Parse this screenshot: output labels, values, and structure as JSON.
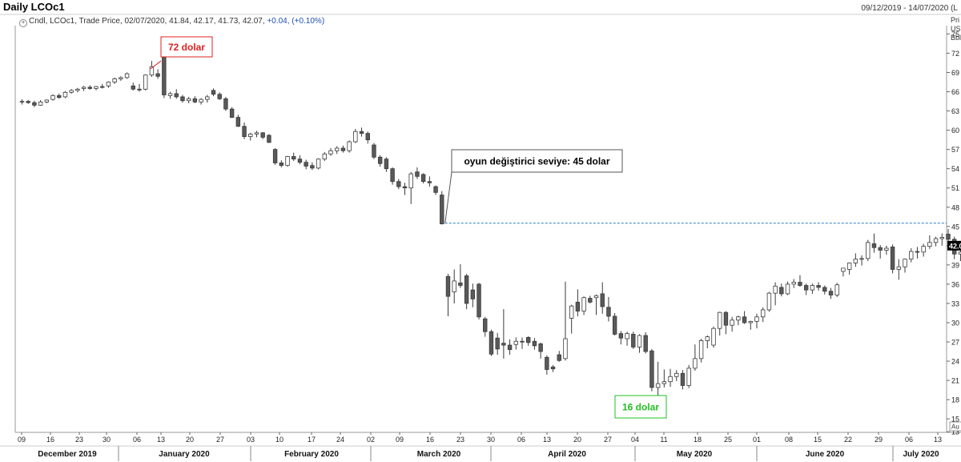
{
  "header": {
    "title": "Daily LCOc1",
    "date_range": "09/12/2019 - 14/07/2020 (L",
    "legend_series": "Cndl, LCOc1, Trade Price, 02/07/2020, 41.84, 42.17, 41.73, 42.07,",
    "legend_change": "+0.04, (+0.10%)",
    "axis_header": [
      "Pri",
      "USI",
      "Bbl"
    ]
  },
  "colors": {
    "down_candle": "#595959",
    "up_candle": "#ffffff",
    "dashed_line": "#2a78c8",
    "callout_red": "#e02020",
    "callout_green": "#22c022"
  },
  "chart_data": {
    "type": "candlestick",
    "ylim": [
      12.5,
      77
    ],
    "y_ticks": [
      75,
      72,
      69,
      66,
      63,
      60,
      57,
      54,
      51,
      48,
      45,
      42,
      39,
      36,
      33,
      30,
      27,
      24,
      21,
      18,
      15,
      13
    ],
    "y_tick_labels": [
      "75",
      "72",
      "69",
      "66",
      "63",
      "60",
      "57",
      "54",
      "51",
      "48",
      "45",
      "42.0",
      "39",
      "36",
      "33",
      "30",
      "27",
      "24",
      "21",
      "18",
      "15",
      "13"
    ],
    "last_price_label": "42.0",
    "axis_bottom_label": "Au",
    "x_day_ticks": [
      "09",
      "16",
      "23",
      "30",
      "06",
      "13",
      "20",
      "27",
      "03",
      "10",
      "17",
      "24",
      "02",
      "09",
      "16",
      "23",
      "30",
      "06",
      "13",
      "20",
      "27",
      "04",
      "11",
      "18",
      "25",
      "01",
      "08",
      "15",
      "22",
      "29",
      "06",
      "13"
    ],
    "x_month_labels": [
      "December 2019",
      "January 2020",
      "February 2020",
      "March 2020",
      "April 2020",
      "May 2020",
      "June 2020",
      "July 2020"
    ],
    "reference_line": {
      "value": 45.5,
      "style": "dashed"
    },
    "annotations": [
      {
        "text": "72 dolar",
        "color": "red",
        "target_candle": 22
      },
      {
        "text": "oyun değiştirici seviye: 45 dolar",
        "color": "black",
        "target_candle": 68
      },
      {
        "text": "16 dolar",
        "color": "green",
        "target_candle": 103
      }
    ],
    "candles": [
      [
        64.4,
        64.8,
        64.0,
        64.5
      ],
      [
        64.5,
        64.7,
        64.1,
        64.3
      ],
      [
        64.3,
        64.6,
        63.6,
        63.9
      ],
      [
        63.9,
        64.7,
        63.8,
        64.4
      ],
      [
        64.4,
        64.8,
        64.2,
        64.7
      ],
      [
        64.8,
        65.6,
        64.6,
        65.4
      ],
      [
        65.4,
        65.7,
        64.9,
        65.1
      ],
      [
        65.2,
        66.1,
        65.0,
        65.9
      ],
      [
        65.9,
        66.4,
        65.7,
        66.2
      ],
      [
        66.2,
        66.6,
        65.9,
        66.4
      ],
      [
        66.5,
        66.9,
        66.1,
        66.7
      ],
      [
        66.7,
        67.0,
        66.3,
        66.5
      ],
      [
        66.5,
        66.9,
        66.2,
        66.8
      ],
      [
        66.8,
        67.2,
        66.5,
        66.7
      ],
      [
        66.9,
        67.6,
        66.6,
        67.5
      ],
      [
        67.5,
        68.2,
        67.2,
        68.0
      ],
      [
        68.0,
        68.4,
        67.7,
        68.2
      ],
      [
        68.2,
        69.0,
        68.0,
        68.8
      ],
      [
        66.9,
        67.4,
        66.2,
        66.4
      ],
      [
        66.4,
        67.2,
        66.0,
        66.3
      ],
      [
        66.4,
        68.7,
        66.2,
        68.6
      ],
      [
        68.6,
        70.8,
        68.3,
        69.9
      ],
      [
        68.8,
        69.5,
        68.0,
        68.4
      ],
      [
        71.8,
        72.2,
        65.0,
        65.5
      ],
      [
        65.4,
        66.0,
        64.9,
        65.7
      ],
      [
        65.7,
        66.4,
        64.9,
        65.2
      ],
      [
        65.2,
        65.5,
        64.3,
        64.6
      ],
      [
        64.6,
        65.2,
        64.2,
        64.9
      ],
      [
        64.9,
        65.3,
        64.2,
        64.4
      ],
      [
        64.4,
        65.0,
        64.0,
        64.8
      ],
      [
        64.8,
        65.5,
        64.3,
        65.2
      ],
      [
        66.2,
        66.5,
        65.3,
        65.6
      ],
      [
        65.6,
        65.9,
        64.7,
        64.9
      ],
      [
        64.9,
        65.2,
        63.0,
        63.3
      ],
      [
        63.3,
        63.6,
        61.9,
        62.0
      ],
      [
        62.0,
        62.4,
        60.5,
        60.6
      ],
      [
        60.6,
        61.2,
        58.6,
        59.0
      ],
      [
        59.0,
        59.6,
        58.4,
        59.4
      ],
      [
        59.4,
        59.9,
        58.9,
        59.6
      ],
      [
        59.6,
        59.7,
        58.6,
        58.9
      ],
      [
        59.2,
        59.4,
        58.0,
        58.1
      ],
      [
        57.0,
        57.2,
        54.6,
        54.9
      ],
      [
        54.9,
        55.3,
        54.2,
        54.5
      ],
      [
        54.5,
        56.0,
        54.3,
        55.9
      ],
      [
        55.9,
        56.5,
        55.2,
        55.5
      ],
      [
        55.5,
        56.1,
        54.7,
        55.0
      ],
      [
        55.0,
        55.4,
        53.9,
        54.4
      ],
      [
        54.5,
        55.0,
        53.8,
        54.1
      ],
      [
        54.1,
        55.6,
        53.9,
        55.5
      ],
      [
        55.5,
        56.6,
        55.2,
        56.3
      ],
      [
        56.3,
        57.2,
        56.0,
        56.8
      ],
      [
        56.8,
        57.5,
        56.3,
        57.2
      ],
      [
        57.2,
        57.6,
        56.5,
        56.8
      ],
      [
        56.8,
        58.4,
        56.5,
        58.2
      ],
      [
        58.2,
        60.2,
        58.0,
        59.8
      ],
      [
        59.8,
        60.4,
        59.0,
        59.5
      ],
      [
        59.5,
        59.8,
        57.9,
        58.5
      ],
      [
        57.7,
        58.0,
        55.5,
        55.8
      ],
      [
        55.8,
        56.1,
        54.3,
        54.8
      ],
      [
        55.5,
        55.8,
        53.5,
        54.0
      ],
      [
        54.0,
        54.2,
        51.5,
        52.0
      ],
      [
        52.0,
        52.4,
        50.8,
        51.2
      ],
      [
        51.2,
        51.8,
        49.9,
        51.0
      ],
      [
        51.0,
        53.5,
        48.5,
        53.2
      ],
      [
        53.5,
        54.2,
        52.4,
        52.8
      ],
      [
        53.1,
        53.3,
        51.7,
        52.0
      ],
      [
        52.0,
        52.8,
        51.2,
        51.8
      ],
      [
        51.2,
        51.4,
        49.9,
        50.3
      ],
      [
        49.9,
        50.5,
        45.3,
        45.4
      ],
      [
        37.2,
        37.6,
        31.0,
        34.1
      ],
      [
        34.8,
        38.3,
        33.0,
        36.5
      ],
      [
        36.2,
        39.1,
        35.4,
        35.8
      ],
      [
        37.3,
        37.6,
        32.1,
        33.0
      ],
      [
        35.1,
        36.1,
        32.4,
        33.7
      ],
      [
        36.0,
        36.2,
        30.5,
        30.9
      ],
      [
        30.6,
        30.9,
        27.8,
        28.6
      ],
      [
        28.6,
        28.9,
        24.8,
        25.1
      ],
      [
        27.6,
        28.4,
        25.0,
        25.9
      ],
      [
        26.8,
        32.1,
        24.4,
        26.5
      ],
      [
        26.5,
        27.4,
        25.0,
        25.8
      ],
      [
        26.6,
        27.7,
        25.8,
        27.1
      ],
      [
        27.1,
        27.7,
        25.9,
        27.0
      ],
      [
        27.7,
        27.9,
        26.4,
        26.9
      ],
      [
        27.1,
        27.6,
        25.8,
        26.4
      ],
      [
        26.7,
        26.9,
        24.4,
        25.5
      ],
      [
        24.6,
        24.9,
        21.9,
        22.7
      ],
      [
        23.1,
        23.4,
        22.3,
        22.8
      ],
      [
        25.0,
        25.6,
        23.9,
        24.1
      ],
      [
        24.4,
        36.4,
        24.1,
        27.5
      ],
      [
        30.7,
        32.8,
        28.3,
        32.6
      ],
      [
        33.2,
        35.2,
        31.0,
        31.8
      ],
      [
        31.8,
        34.1,
        31.2,
        33.9
      ],
      [
        33.8,
        34.2,
        33.0,
        33.2
      ],
      [
        33.9,
        34.4,
        31.2,
        34.2
      ],
      [
        34.5,
        36.3,
        31.4,
        32.5
      ],
      [
        32.4,
        34.0,
        30.2,
        31.0
      ],
      [
        31.0,
        31.5,
        28.0,
        28.2
      ],
      [
        28.3,
        28.7,
        26.6,
        27.6
      ],
      [
        27.5,
        28.6,
        26.4,
        28.3
      ],
      [
        28.2,
        28.6,
        25.9,
        26.2
      ],
      [
        26.2,
        28.2,
        25.3,
        28.0
      ],
      [
        28.0,
        28.5,
        25.2,
        25.5
      ],
      [
        25.6,
        25.9,
        19.3,
        19.9
      ],
      [
        19.9,
        23.9,
        16.0,
        20.5
      ],
      [
        20.5,
        22.7,
        19.9,
        20.8
      ],
      [
        20.8,
        22.8,
        20.0,
        21.6
      ],
      [
        21.6,
        22.6,
        20.9,
        22.1
      ],
      [
        22.1,
        22.6,
        19.6,
        20.2
      ],
      [
        20.2,
        23.4,
        19.8,
        22.9
      ],
      [
        22.9,
        26.6,
        22.5,
        24.4
      ],
      [
        24.4,
        27.5,
        23.8,
        27.2
      ],
      [
        27.2,
        28.0,
        26.0,
        27.8
      ],
      [
        26.5,
        29.4,
        26.1,
        29.1
      ],
      [
        29.1,
        31.7,
        28.0,
        31.6
      ],
      [
        31.6,
        31.8,
        28.2,
        29.6
      ],
      [
        29.6,
        30.9,
        28.6,
        30.4
      ],
      [
        30.4,
        31.1,
        29.6,
        30.9
      ],
      [
        30.9,
        31.8,
        29.8,
        30.0
      ],
      [
        30.0,
        30.3,
        28.9,
        30.2
      ],
      [
        30.2,
        31.4,
        29.1,
        30.9
      ],
      [
        30.9,
        32.4,
        30.1,
        32.0
      ],
      [
        32.0,
        34.8,
        31.7,
        34.6
      ],
      [
        34.6,
        36.3,
        32.7,
        35.7
      ],
      [
        35.5,
        36.1,
        34.1,
        34.5
      ],
      [
        34.5,
        36.4,
        34.3,
        36.0
      ],
      [
        36.0,
        36.8,
        35.4,
        36.3
      ],
      [
        36.3,
        37.4,
        35.6,
        35.8
      ],
      [
        35.8,
        36.1,
        34.3,
        35.1
      ],
      [
        35.1,
        36.1,
        34.5,
        35.8
      ],
      [
        35.8,
        36.3,
        35.0,
        35.5
      ],
      [
        35.5,
        35.8,
        34.4,
        34.9
      ],
      [
        34.9,
        35.4,
        33.7,
        34.3
      ],
      [
        34.3,
        36.2,
        34.0,
        35.9
      ],
      [
        38.0,
        38.5,
        37.2,
        38.5
      ],
      [
        38.3,
        39.4,
        37.5,
        39.3
      ],
      [
        39.3,
        40.8,
        38.7,
        39.9
      ],
      [
        39.9,
        40.5,
        38.9,
        40.0
      ],
      [
        40.0,
        42.9,
        39.6,
        42.5
      ],
      [
        42.3,
        43.9,
        40.9,
        41.7
      ],
      [
        41.7,
        42.1,
        40.0,
        41.3
      ],
      [
        41.3,
        42.0,
        40.6,
        41.6
      ],
      [
        41.8,
        42.2,
        37.7,
        38.3
      ],
      [
        38.3,
        39.9,
        36.7,
        38.7
      ],
      [
        38.7,
        40.0,
        37.8,
        39.9
      ],
      [
        39.9,
        41.6,
        39.4,
        41.1
      ],
      [
        41.1,
        41.8,
        40.0,
        41.0
      ],
      [
        41.0,
        42.3,
        40.3,
        41.9
      ],
      [
        41.9,
        43.6,
        41.5,
        42.5
      ],
      [
        42.5,
        43.4,
        41.9,
        43.1
      ],
      [
        43.1,
        43.9,
        42.0,
        43.3
      ],
      [
        43.8,
        44.6,
        42.6,
        43.0
      ],
      [
        43.0,
        43.4,
        39.9,
        40.7
      ],
      [
        40.7,
        41.7,
        39.6,
        41.0
      ],
      [
        41.0,
        41.7,
        40.3,
        41.2
      ],
      [
        41.2,
        42.2,
        40.3,
        41.7
      ],
      [
        41.0,
        41.9,
        40.5,
        41.4
      ],
      [
        41.4,
        42.6,
        41.0,
        42.1
      ],
      [
        41.8,
        42.2,
        41.7,
        42.1
      ]
    ]
  }
}
